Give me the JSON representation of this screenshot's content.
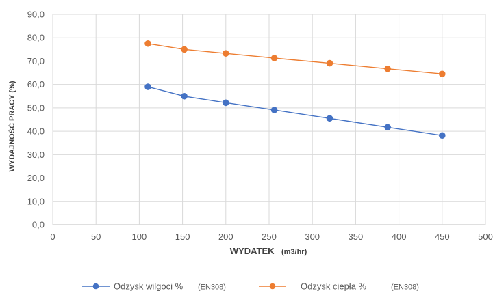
{
  "chart_data": {
    "type": "line",
    "xlabel_main": "WYDATEK",
    "xlabel_unit": "(m3/hr)",
    "ylabel": "WYDAJNOŚĆ PRACY (%)",
    "xlim": [
      0,
      500
    ],
    "ylim": [
      0,
      90
    ],
    "x_ticks": [
      "0",
      "50",
      "100",
      "150",
      "200",
      "250",
      "300",
      "350",
      "400",
      "450",
      "500"
    ],
    "y_ticks": [
      "0,0",
      "10,0",
      "20,0",
      "30,0",
      "40,0",
      "50,0",
      "60,0",
      "70,0",
      "80,0",
      "90,0"
    ],
    "grid": true,
    "legend_position": "bottom",
    "series": [
      {
        "name": "Odzysk wilgoci %",
        "tag": "(EN308)",
        "color": "#4472c4",
        "x": [
          110,
          152,
          200,
          256,
          320,
          387,
          450
        ],
        "values": [
          59.0,
          55.0,
          52.2,
          49.1,
          45.5,
          41.7,
          38.2
        ]
      },
      {
        "name": "Odzysk ciepła %",
        "tag": "(EN308)",
        "color": "#ed7d31",
        "x": [
          110,
          152,
          200,
          256,
          320,
          387,
          450
        ],
        "values": [
          77.5,
          75.0,
          73.3,
          71.3,
          69.1,
          66.7,
          64.5
        ]
      }
    ]
  }
}
